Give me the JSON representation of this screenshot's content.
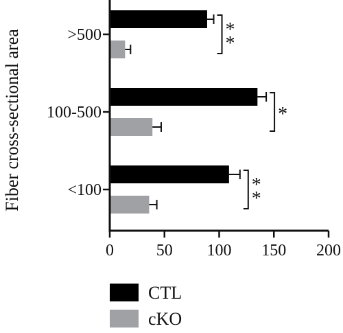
{
  "chart_data": {
    "type": "bar",
    "orientation": "horizontal",
    "categories": [
      ">500",
      "100-500",
      "<100"
    ],
    "series": [
      {
        "name": "CTL",
        "color": "#000000",
        "values": [
          89,
          135,
          109
        ],
        "errors": [
          6,
          8,
          10
        ]
      },
      {
        "name": "cKO",
        "color": "#a0a1a5",
        "values": [
          14,
          39,
          36
        ],
        "errors": [
          5,
          8,
          7
        ]
      }
    ],
    "significance": [
      "* *",
      "*",
      "* *"
    ],
    "ylabel": "Fiber cross-sectional area",
    "xlabel": "",
    "xlim": [
      0,
      200
    ],
    "xticks": [
      "0",
      "50",
      "100",
      "150",
      "200"
    ],
    "grid": false,
    "legend_position": "bottom-left"
  }
}
